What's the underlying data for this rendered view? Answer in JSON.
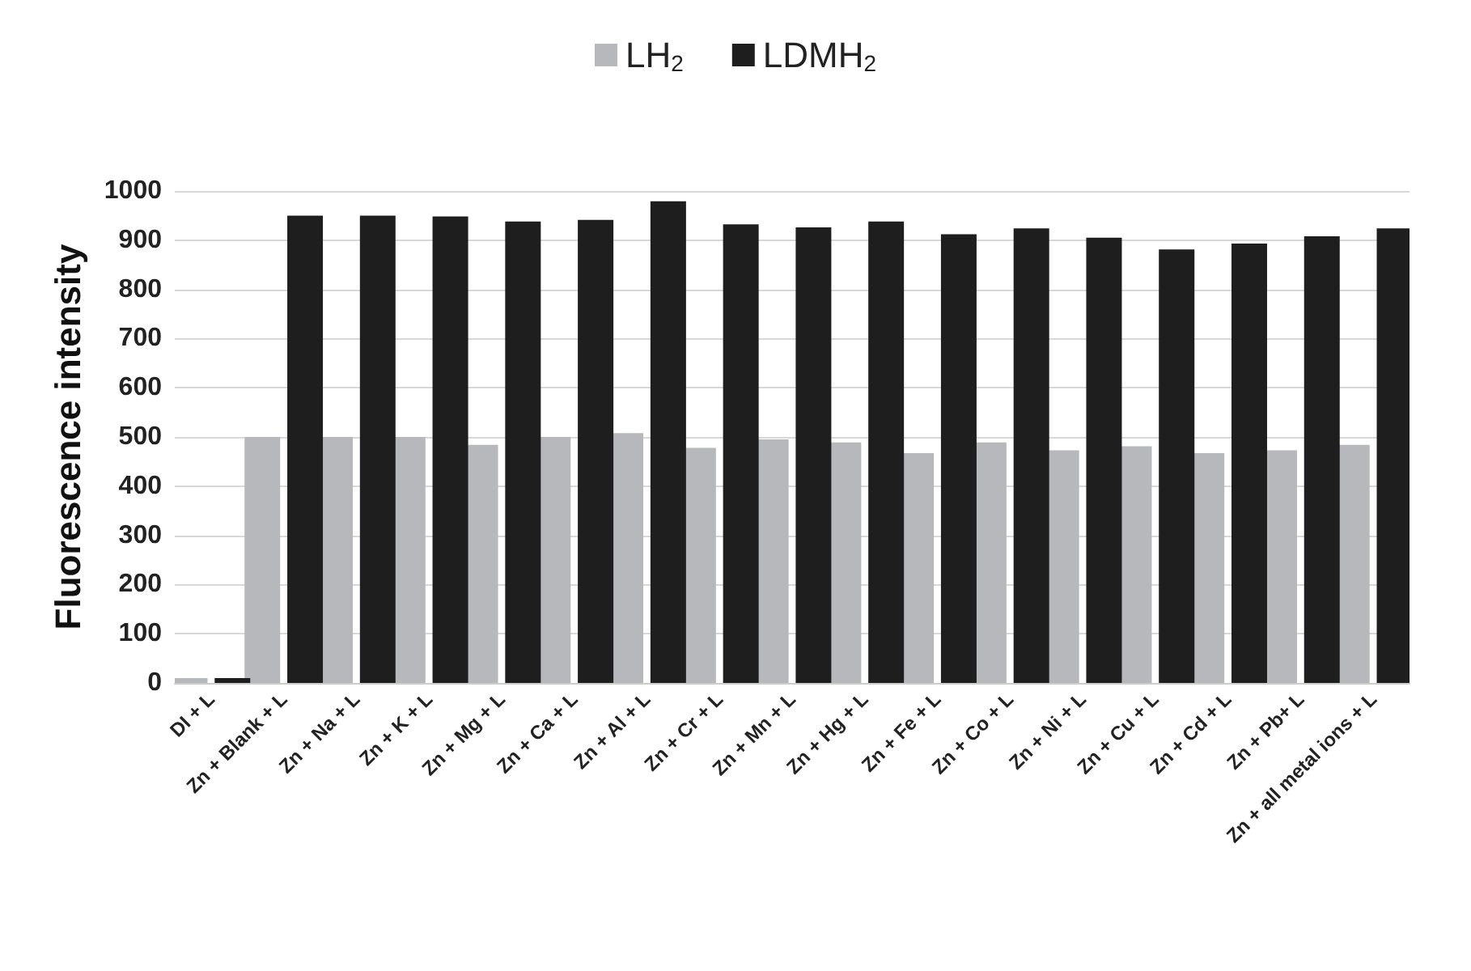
{
  "chart_data": {
    "type": "bar",
    "ylabel": "Fluorescence intensity",
    "categories": [
      "DI + L",
      "Zn + Blank + L",
      "Zn + Na + L",
      "Zn + K + L",
      "Zn + Mg + L",
      "Zn + Ca + L",
      "Zn + Al + L",
      "Zn + Cr + L",
      "Zn + Mn + L",
      "Zn + Hg + L",
      "Zn + Fe + L",
      "Zn + Co + L",
      "Zn + Ni + L",
      "Zn + Cu + L",
      "Zn + Cd + L",
      "Zn + Pb+ L",
      "Zn + all metal ions + L"
    ],
    "series": [
      {
        "name": "LH$_{2}$",
        "color": "#b7b8bc",
        "values": [
          10,
          500,
          500,
          500,
          484,
          500,
          508,
          478,
          495,
          489,
          467,
          489,
          473,
          481,
          467,
          473,
          484
        ]
      },
      {
        "name": "LDMH$_{2}$",
        "color": "#1e1e1e",
        "values": [
          10,
          950,
          950,
          948,
          938,
          941,
          979,
          932,
          926,
          938,
          912,
          924,
          905,
          881,
          893,
          908,
          924
        ]
      }
    ],
    "ylim": [
      0,
      1000
    ],
    "yticks": [
      0,
      100,
      200,
      300,
      400,
      500,
      600,
      700,
      800,
      900,
      1000
    ],
    "grid": "y",
    "legend": "top"
  }
}
